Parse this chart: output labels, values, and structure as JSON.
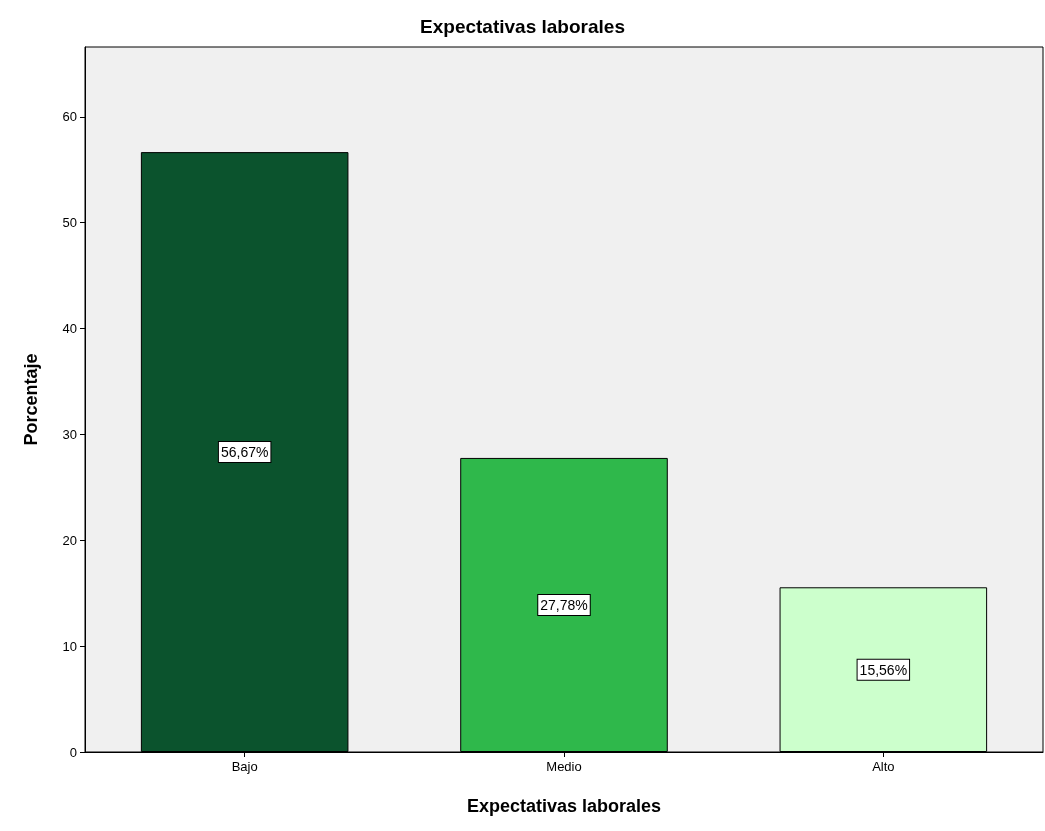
{
  "chart_data": {
    "type": "bar",
    "title": "Expectativas laborales",
    "xlabel": "Expectativas laborales",
    "ylabel": "Porcentaje",
    "categories": [
      "Bajo",
      "Medio",
      "Alto"
    ],
    "values": [
      56.67,
      27.78,
      15.56
    ],
    "value_labels": [
      "56,67%",
      "27,78%",
      "15,56%"
    ],
    "colors": [
      "#0b532d",
      "#2fb84b",
      "#ccffcc"
    ],
    "ylim": [
      0,
      66.6
    ],
    "yticks": [
      0,
      10,
      20,
      30,
      40,
      50,
      60
    ],
    "grid": false
  }
}
